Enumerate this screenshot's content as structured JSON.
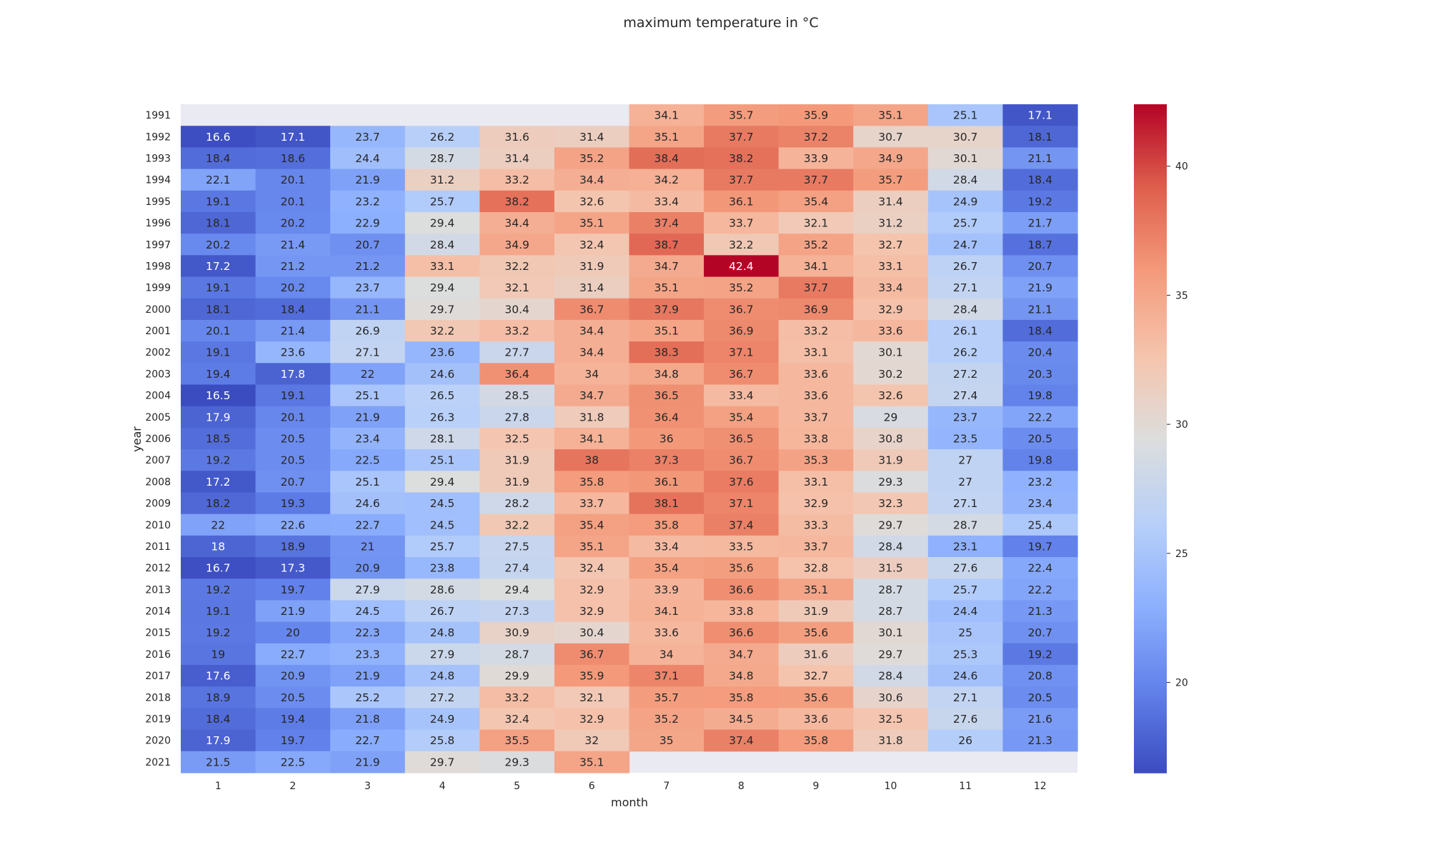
{
  "chart_data": {
    "type": "heatmap",
    "title": "maximum temperature in °C",
    "xlabel": "month",
    "ylabel": "year",
    "x": [
      "1",
      "2",
      "3",
      "4",
      "5",
      "6",
      "7",
      "8",
      "9",
      "10",
      "11",
      "12"
    ],
    "y": [
      "1991",
      "1992",
      "1993",
      "1994",
      "1995",
      "1996",
      "1997",
      "1998",
      "1999",
      "2000",
      "2001",
      "2002",
      "2003",
      "2004",
      "2005",
      "2006",
      "2007",
      "2008",
      "2009",
      "2010",
      "2011",
      "2012",
      "2013",
      "2014",
      "2015",
      "2016",
      "2017",
      "2018",
      "2019",
      "2020",
      "2021"
    ],
    "values": [
      [
        null,
        null,
        null,
        null,
        null,
        null,
        34.1,
        35.7,
        35.9,
        35.1,
        25.1,
        17.1
      ],
      [
        16.6,
        17.1,
        23.7,
        26.2,
        31.6,
        31.4,
        35.1,
        37.7,
        37.2,
        30.7,
        30.7,
        18.1
      ],
      [
        18.4,
        18.6,
        24.4,
        28.7,
        31.4,
        35.2,
        38.4,
        38.2,
        33.9,
        34.9,
        30.1,
        21.1
      ],
      [
        22.1,
        20.1,
        21.9,
        31.2,
        33.2,
        34.4,
        34.2,
        37.7,
        37.7,
        35.7,
        28.4,
        18.4
      ],
      [
        19.1,
        20.1,
        23.2,
        25.7,
        38.2,
        32.6,
        33.4,
        36.1,
        35.4,
        31.4,
        24.9,
        19.2
      ],
      [
        18.1,
        20.2,
        22.9,
        29.4,
        34.4,
        35.1,
        37.4,
        33.7,
        32.1,
        31.2,
        25.7,
        21.7
      ],
      [
        20.2,
        21.4,
        20.7,
        28.4,
        34.9,
        32.4,
        38.7,
        32.2,
        35.2,
        32.7,
        24.7,
        18.7
      ],
      [
        17.2,
        21.2,
        21.2,
        33.1,
        32.2,
        31.9,
        34.7,
        42.4,
        34.1,
        33.1,
        26.7,
        20.7
      ],
      [
        19.1,
        20.2,
        23.7,
        29.4,
        32.1,
        31.4,
        35.1,
        35.2,
        37.7,
        33.4,
        27.1,
        21.9
      ],
      [
        18.1,
        18.4,
        21.1,
        29.7,
        30.4,
        36.7,
        37.9,
        36.7,
        36.9,
        32.9,
        28.4,
        21.1
      ],
      [
        20.1,
        21.4,
        26.9,
        32.2,
        33.2,
        34.4,
        35.1,
        36.9,
        33.2,
        33.6,
        26.1,
        18.4
      ],
      [
        19.1,
        23.6,
        27.1,
        23.6,
        27.7,
        34.4,
        38.3,
        37.1,
        33.1,
        30.1,
        26.2,
        20.4
      ],
      [
        19.4,
        17.8,
        22,
        24.6,
        36.4,
        34,
        34.8,
        36.7,
        33.6,
        30.2,
        27.2,
        20.3
      ],
      [
        16.5,
        19.1,
        25.1,
        26.5,
        28.5,
        34.7,
        36.5,
        33.4,
        33.6,
        32.6,
        27.4,
        19.8
      ],
      [
        17.9,
        20.1,
        21.9,
        26.3,
        27.8,
        31.8,
        36.4,
        35.4,
        33.7,
        29,
        23.7,
        22.2
      ],
      [
        18.5,
        20.5,
        23.4,
        28.1,
        32.5,
        34.1,
        36,
        36.5,
        33.8,
        30.8,
        23.5,
        20.5
      ],
      [
        19.2,
        20.5,
        22.5,
        25.1,
        31.9,
        38,
        37.3,
        36.7,
        35.3,
        31.9,
        27,
        19.8
      ],
      [
        17.2,
        20.7,
        25.1,
        29.4,
        31.9,
        35.8,
        36.1,
        37.6,
        33.1,
        29.3,
        27,
        23.2
      ],
      [
        18.2,
        19.3,
        24.6,
        24.5,
        28.2,
        33.7,
        38.1,
        37.1,
        32.9,
        32.3,
        27.1,
        23.4
      ],
      [
        22,
        22.6,
        22.7,
        24.5,
        32.2,
        35.4,
        35.8,
        37.4,
        33.3,
        29.7,
        28.7,
        25.4
      ],
      [
        18,
        18.9,
        21,
        25.7,
        27.5,
        35.1,
        33.4,
        33.5,
        33.7,
        28.4,
        23.1,
        19.7
      ],
      [
        16.7,
        17.3,
        20.9,
        23.8,
        27.4,
        32.4,
        35.4,
        35.6,
        32.8,
        31.5,
        27.6,
        22.4
      ],
      [
        19.2,
        19.7,
        27.9,
        28.6,
        29.4,
        32.9,
        33.9,
        36.6,
        35.1,
        28.7,
        25.7,
        22.2
      ],
      [
        19.1,
        21.9,
        24.5,
        26.7,
        27.3,
        32.9,
        34.1,
        33.8,
        31.9,
        28.7,
        24.4,
        21.3
      ],
      [
        19.2,
        20,
        22.3,
        24.8,
        30.9,
        30.4,
        33.6,
        36.6,
        35.6,
        30.1,
        25,
        20.7
      ],
      [
        19,
        22.7,
        23.3,
        27.9,
        28.7,
        36.7,
        34,
        34.7,
        31.6,
        29.7,
        25.3,
        19.2
      ],
      [
        17.6,
        20.9,
        21.9,
        24.8,
        29.9,
        35.9,
        37.1,
        34.8,
        32.7,
        28.4,
        24.6,
        20.8
      ],
      [
        18.9,
        20.5,
        25.2,
        27.2,
        33.2,
        32.1,
        35.7,
        35.8,
        35.6,
        30.6,
        27.1,
        20.5
      ],
      [
        18.4,
        19.4,
        21.8,
        24.9,
        32.4,
        32.9,
        35.2,
        34.5,
        33.6,
        32.5,
        27.6,
        21.6
      ],
      [
        17.9,
        19.7,
        22.7,
        25.8,
        35.5,
        32,
        35,
        37.4,
        35.8,
        31.8,
        26,
        21.3
      ],
      [
        21.5,
        22.5,
        21.9,
        29.7,
        29.3,
        35.1,
        null,
        null,
        null,
        null,
        null,
        null
      ]
    ],
    "colormap": "coolwarm",
    "vmin": 16.5,
    "vmax": 42.4,
    "colorbar_ticks": [
      20,
      25,
      30,
      35,
      40
    ],
    "missing_color": "#eaeaf2"
  }
}
